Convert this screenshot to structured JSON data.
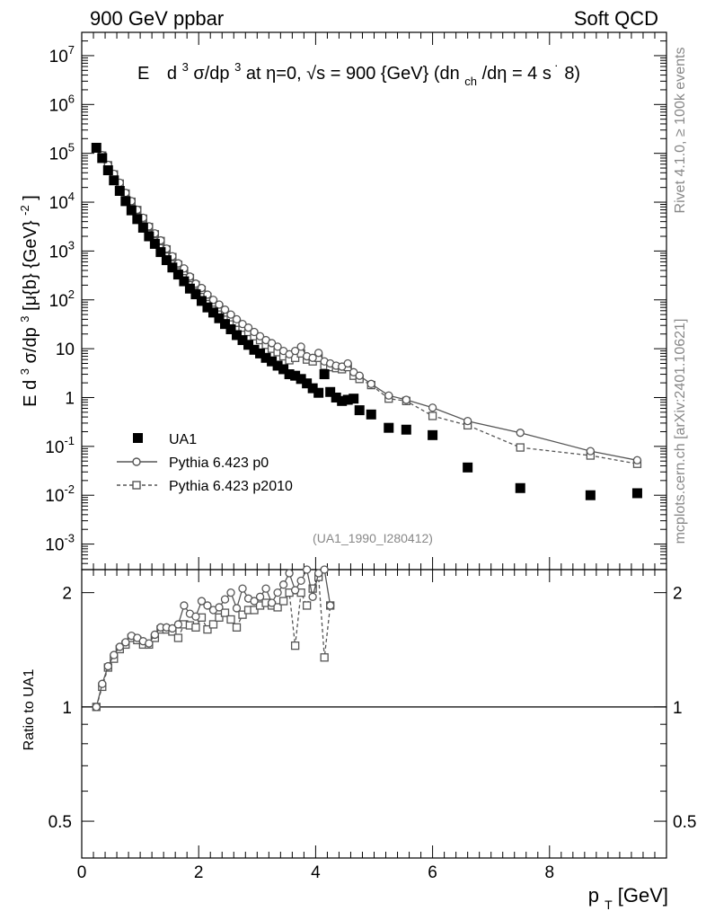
{
  "header": {
    "left": "900 GeV ppbar",
    "right": "Soft QCD"
  },
  "side": {
    "top": "Rivet 4.1.0, ≥ 100k events",
    "bottom": "mcplots.cern.ch [arXiv:2401.10621]"
  },
  "chart_data": [
    {
      "type": "scatter",
      "title_parts": [
        "E",
        "d",
        "3",
        "σ/dp",
        "3",
        " at η=0, √s = 900 {GeV} (dn",
        "ch",
        "/dη = 4 s",
        "˙",
        "8)"
      ],
      "ylabel_parts": [
        "E d",
        "3",
        "σ/dp",
        "3",
        " [μ{b} {GeV}",
        "-2",
        "]"
      ],
      "yscale": "log",
      "ylim": [
        0.0003,
        30000000
      ],
      "xlim": [
        0,
        10
      ],
      "yticks": [
        {
          "v": 0.001,
          "m": "10",
          "e": "-3"
        },
        {
          "v": 0.01,
          "m": "10",
          "e": "-2"
        },
        {
          "v": 0.1,
          "m": "10",
          "e": "-1"
        },
        {
          "v": 1,
          "m": "1",
          "e": ""
        },
        {
          "v": 10,
          "m": "10",
          "e": ""
        },
        {
          "v": 100,
          "m": "10",
          "e": "2"
        },
        {
          "v": 1000,
          "m": "10",
          "e": "3"
        },
        {
          "v": 10000,
          "m": "10",
          "e": "4"
        },
        {
          "v": 100000,
          "m": "10",
          "e": "5"
        },
        {
          "v": 1000000,
          "m": "10",
          "e": "6"
        },
        {
          "v": 10000000,
          "m": "10",
          "e": "7"
        }
      ],
      "watermark": "(UA1_1990_I280412)",
      "legend_position": "lower-left",
      "series": [
        {
          "name": "UA1",
          "style": "filled-square",
          "x": [
            0.25,
            0.35,
            0.45,
            0.55,
            0.65,
            0.75,
            0.85,
            0.95,
            1.05,
            1.15,
            1.25,
            1.35,
            1.45,
            1.55,
            1.65,
            1.75,
            1.85,
            1.95,
            2.05,
            2.15,
            2.25,
            2.35,
            2.45,
            2.55,
            2.65,
            2.75,
            2.85,
            2.95,
            3.05,
            3.15,
            3.25,
            3.35,
            3.45,
            3.55,
            3.65,
            3.75,
            3.85,
            3.95,
            4.05,
            4.15,
            4.25,
            4.35,
            4.45,
            4.55,
            4.65,
            4.75,
            4.95,
            5.25,
            5.55,
            6.0,
            6.6,
            7.5,
            8.7,
            9.5
          ],
          "y": [
            130000,
            80000,
            45000,
            28000,
            17000,
            10500,
            6800,
            4500,
            3000,
            2000,
            1400,
            950,
            650,
            460,
            330,
            240,
            170,
            130,
            95,
            70,
            55,
            42,
            32,
            25,
            19,
            15,
            12,
            9.5,
            8,
            6.5,
            5.5,
            4.5,
            3.8,
            3.0,
            2.8,
            2.4,
            1.95,
            1.55,
            1.25,
            3.0,
            1.3,
            1.0,
            0.85,
            0.9,
            0.95,
            0.55,
            0.45,
            0.24,
            0.22,
            0.17,
            0.037,
            0.014,
            0.01,
            0.011
          ]
        },
        {
          "name": "Pythia 6.423 p0",
          "style": "open-circle-solid",
          "x": [
            0.25,
            0.35,
            0.45,
            0.55,
            0.65,
            0.75,
            0.85,
            0.95,
            1.05,
            1.15,
            1.25,
            1.35,
            1.45,
            1.55,
            1.65,
            1.75,
            1.85,
            1.95,
            2.05,
            2.15,
            2.25,
            2.35,
            2.45,
            2.55,
            2.65,
            2.75,
            2.85,
            2.95,
            3.05,
            3.15,
            3.25,
            3.35,
            3.45,
            3.55,
            3.65,
            3.75,
            3.85,
            3.95,
            4.05,
            4.15,
            4.25,
            4.35,
            4.45,
            4.55,
            4.65,
            4.75,
            4.95,
            5.25,
            5.55,
            6.0,
            6.6,
            7.5,
            8.7,
            9.5
          ],
          "y": [
            130000,
            92000,
            58000,
            38000,
            25000,
            15500,
            10500,
            7000,
            4800,
            3200,
            2300,
            1650,
            1120,
            780,
            560,
            440,
            300,
            215,
            175,
            128,
            100,
            80,
            63,
            50,
            40,
            32,
            27,
            22,
            18,
            15,
            13,
            11,
            9,
            7.7,
            9,
            11,
            7,
            6.5,
            8.2,
            5.5,
            5,
            4.5,
            4.3,
            5,
            3.3,
            2.8,
            1.9,
            1.1,
            0.9,
            0.62,
            0.33,
            0.19,
            0.08,
            0.052
          ]
        },
        {
          "name": "Pythia 6.423 p2010",
          "style": "open-square-dashed",
          "x": [
            0.25,
            0.35,
            0.45,
            0.55,
            0.65,
            0.75,
            0.85,
            0.95,
            1.05,
            1.15,
            1.25,
            1.35,
            1.45,
            1.55,
            1.65,
            1.75,
            1.85,
            1.95,
            2.05,
            2.15,
            2.25,
            2.35,
            2.45,
            2.55,
            2.65,
            2.75,
            2.85,
            2.95,
            3.05,
            3.15,
            3.25,
            3.35,
            3.45,
            3.55,
            3.65,
            3.75,
            3.85,
            3.95,
            4.05,
            4.15,
            4.25,
            4.35,
            4.45,
            4.55,
            4.65,
            4.75,
            4.95,
            5.25,
            5.55,
            6.0,
            6.6,
            7.5,
            8.7,
            9.5
          ],
          "y": [
            130000,
            90000,
            57000,
            37000,
            24000,
            15000,
            10200,
            6900,
            4600,
            3100,
            2200,
            1600,
            1080,
            750,
            520,
            390,
            280,
            200,
            160,
            115,
            88,
            70,
            55,
            44,
            34,
            27,
            22,
            18,
            15,
            12,
            10,
            8.5,
            7,
            5.8,
            6.5,
            8,
            6,
            5.5,
            6.5,
            4.5,
            4.2,
            4,
            3.8,
            4.2,
            2.8,
            2.4,
            1.8,
            0.95,
            0.85,
            0.42,
            0.27,
            0.095,
            0.065,
            0.044
          ]
        }
      ]
    },
    {
      "type": "scatter",
      "ylabel": "Ratio to UA1",
      "yscale": "log",
      "ylim": [
        0.4,
        2.3
      ],
      "xlim": [
        0,
        10
      ],
      "yticks": [
        {
          "v": 0.5,
          "label": "0.5"
        },
        {
          "v": 1,
          "label": "1"
        },
        {
          "v": 2,
          "label": "2"
        }
      ],
      "xticks": [
        {
          "v": 0,
          "label": "0"
        },
        {
          "v": 2,
          "label": "2"
        },
        {
          "v": 4,
          "label": "4"
        },
        {
          "v": 6,
          "label": "6"
        },
        {
          "v": 8,
          "label": "8"
        }
      ],
      "xlabel_parts": [
        "p",
        "T",
        " [GeV]"
      ],
      "reference_line": 1,
      "series": [
        {
          "name": "Pythia 6.423 p0",
          "style": "open-circle-solid",
          "x": [
            0.25,
            0.35,
            0.45,
            0.55,
            0.65,
            0.75,
            0.85,
            0.95,
            1.05,
            1.15,
            1.25,
            1.35,
            1.45,
            1.55,
            1.65,
            1.75,
            1.85,
            1.95,
            2.05,
            2.15,
            2.25,
            2.35,
            2.45,
            2.55,
            2.65,
            2.75,
            2.85,
            2.95,
            3.05,
            3.15,
            3.25,
            3.35,
            3.45,
            3.55,
            3.65,
            3.75,
            3.85,
            3.95,
            4.05,
            4.15,
            4.25
          ],
          "y": [
            1.0,
            1.15,
            1.28,
            1.37,
            1.44,
            1.48,
            1.54,
            1.52,
            1.49,
            1.47,
            1.55,
            1.62,
            1.62,
            1.61,
            1.65,
            1.85,
            1.76,
            1.73,
            1.9,
            1.85,
            1.8,
            1.83,
            1.92,
            2.0,
            1.82,
            2.05,
            1.93,
            1.9,
            1.95,
            2.05,
            1.88,
            2.0,
            2.1,
            2.25,
            2.03,
            2.15,
            2.3,
            1.95,
            2.25,
            2.3,
            1.85
          ]
        },
        {
          "name": "Pythia 6.423 p2010",
          "style": "open-square-dashed",
          "x": [
            0.25,
            0.35,
            0.45,
            0.55,
            0.65,
            0.75,
            0.85,
            0.95,
            1.05,
            1.15,
            1.25,
            1.35,
            1.45,
            1.55,
            1.65,
            1.75,
            1.85,
            1.95,
            2.05,
            2.15,
            2.25,
            2.35,
            2.45,
            2.55,
            2.65,
            2.75,
            2.85,
            2.95,
            3.05,
            3.15,
            3.25,
            3.35,
            3.45,
            3.55,
            3.65,
            3.75,
            3.85,
            3.95,
            4.05,
            4.15,
            4.25
          ],
          "y": [
            1.0,
            1.13,
            1.27,
            1.34,
            1.42,
            1.46,
            1.52,
            1.5,
            1.46,
            1.46,
            1.52,
            1.6,
            1.6,
            1.58,
            1.52,
            1.65,
            1.64,
            1.62,
            1.72,
            1.6,
            1.65,
            1.72,
            1.77,
            1.7,
            1.62,
            1.75,
            1.8,
            1.8,
            1.85,
            1.88,
            1.85,
            1.83,
            1.9,
            2.0,
            1.45,
            2.0,
            1.85,
            2.05,
            2.2,
            1.35,
            1.85
          ]
        }
      ]
    }
  ],
  "legend": [
    {
      "label": "UA1"
    },
    {
      "label": "Pythia 6.423 p0"
    },
    {
      "label": "Pythia 6.423 p2010"
    }
  ]
}
